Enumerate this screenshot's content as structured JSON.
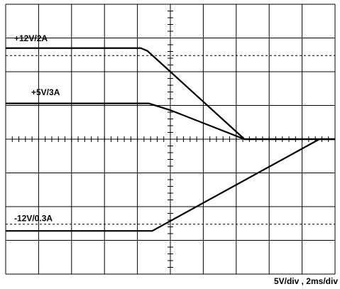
{
  "chart_data": {
    "type": "line",
    "annotation": "5V/div , 2ms/div",
    "xlim": [
      0,
      20
    ],
    "xticks": [
      0,
      2,
      4,
      6,
      8,
      10,
      12,
      14,
      16,
      18,
      20
    ],
    "ylim": [
      -20,
      20
    ],
    "yticks": [
      -20,
      -15,
      -10,
      -5,
      0,
      5,
      10,
      15,
      20
    ],
    "grid": true,
    "reference_lines": [
      12.4,
      -12.6
    ],
    "series": [
      {
        "name": "+12V/2A",
        "color": "#000000",
        "x": [
          0,
          8.2,
          8.6,
          9.1,
          14.5,
          20
        ],
        "values": [
          13.5,
          13.5,
          13.1,
          12.0,
          0,
          0
        ]
      },
      {
        "name": "+5V/3A",
        "color": "#000000",
        "x": [
          0,
          8.7,
          10.0,
          14.5,
          20
        ],
        "values": [
          5.3,
          5.3,
          4.3,
          0,
          0
        ]
      },
      {
        "name": "-12V/0.3A",
        "color": "#000000",
        "x": [
          0,
          8.9,
          19.05,
          20
        ],
        "values": [
          -13.6,
          -13.6,
          0,
          0
        ]
      }
    ]
  }
}
